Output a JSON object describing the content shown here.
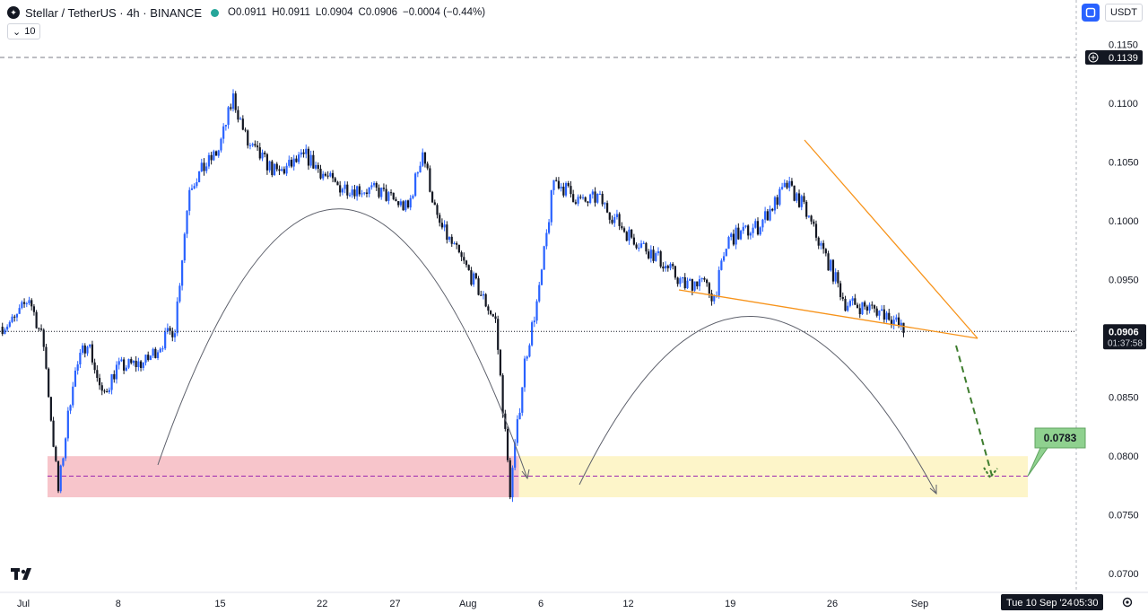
{
  "header": {
    "symbol": "Stellar / TetherUS · 4h · BINANCE",
    "ohlc": {
      "o_label": "O",
      "o": "0.0911",
      "h_label": "H",
      "h": "0.0911",
      "l_label": "L",
      "l": "0.0904",
      "c_label": "C",
      "c": "0.0906",
      "change": "−0.0004 (−0.44%)"
    },
    "indicator_value": "10"
  },
  "currency_selector": "USDT",
  "icons": [
    "stellar-logo",
    "settings-icon",
    "crosshair-plus-icon",
    "tradingview-logo",
    "gear-icon",
    "chevron-down-icon"
  ],
  "chart_data": {
    "type": "candlestick",
    "ylim": [
      0.0675,
      0.1155
    ],
    "y_ticks": [
      "0.1150",
      "0.1100",
      "0.1050",
      "0.1000",
      "0.0950",
      "0.0900",
      "0.0850",
      "0.0800",
      "0.0750",
      "0.0700"
    ],
    "x_ticks": [
      "Jul",
      "8",
      "15",
      "22",
      "27",
      "Aug",
      "6",
      "12",
      "19",
      "26",
      "Sep"
    ],
    "price_path": [
      {
        "t": "Jul 1",
        "p": 0.091
      },
      {
        "t": "Jul 2",
        "p": 0.0915
      },
      {
        "t": "Jul 3",
        "p": 0.0935
      },
      {
        "t": "Jul 4",
        "p": 0.0895
      },
      {
        "t": "Jul 5",
        "p": 0.077
      },
      {
        "t": "Jul 6",
        "p": 0.0865
      },
      {
        "t": "Jul 7",
        "p": 0.09
      },
      {
        "t": "Jul 8",
        "p": 0.085
      },
      {
        "t": "Jul 9",
        "p": 0.0875
      },
      {
        "t": "Jul 11",
        "p": 0.088
      },
      {
        "t": "Jul 13",
        "p": 0.091
      },
      {
        "t": "Jul 14",
        "p": 0.103
      },
      {
        "t": "Jul 16",
        "p": 0.106
      },
      {
        "t": "Jul 17",
        "p": 0.1105
      },
      {
        "t": "Jul 18",
        "p": 0.1065
      },
      {
        "t": "Jul 20",
        "p": 0.104
      },
      {
        "t": "Jul 22",
        "p": 0.1055
      },
      {
        "t": "Jul 24",
        "p": 0.103
      },
      {
        "t": "Jul 27",
        "p": 0.1025
      },
      {
        "t": "Jul 29",
        "p": 0.101
      },
      {
        "t": "Jul 30",
        "p": 0.106
      },
      {
        "t": "Jul 31",
        "p": 0.1
      },
      {
        "t": "Aug 2",
        "p": 0.096
      },
      {
        "t": "Aug 4",
        "p": 0.0915
      },
      {
        "t": "Aug 5",
        "p": 0.077
      },
      {
        "t": "Aug 6",
        "p": 0.088
      },
      {
        "t": "Aug 7",
        "p": 0.094
      },
      {
        "t": "Aug 8",
        "p": 0.1035
      },
      {
        "t": "Aug 10",
        "p": 0.1015
      },
      {
        "t": "Aug 11",
        "p": 0.102
      },
      {
        "t": "Aug 13",
        "p": 0.099
      },
      {
        "t": "Aug 15",
        "p": 0.097
      },
      {
        "t": "Aug 17",
        "p": 0.0945
      },
      {
        "t": "Aug 18",
        "p": 0.095
      },
      {
        "t": "Aug 19",
        "p": 0.0935
      },
      {
        "t": "Aug 20",
        "p": 0.0985
      },
      {
        "t": "Aug 22",
        "p": 0.0995
      },
      {
        "t": "Aug 24",
        "p": 0.103
      },
      {
        "t": "Aug 25",
        "p": 0.1015
      },
      {
        "t": "Aug 27",
        "p": 0.096
      },
      {
        "t": "Aug 28",
        "p": 0.093
      },
      {
        "t": "Aug 30",
        "p": 0.0925
      },
      {
        "t": "Aug 31",
        "p": 0.092
      },
      {
        "t": "Sep 1",
        "p": 0.0906
      }
    ],
    "last_price": "0.0906",
    "countdown": "01:37:58",
    "crosshair_price": "0.1139",
    "annotations": {
      "target_label": "0.0783",
      "support_zone": [
        0.0765,
        0.08
      ],
      "target_level": 0.0783
    },
    "time_label": "Tue 10 Sep '24",
    "time_label_clock": "05:30",
    "colors": {
      "up": "#2962ff",
      "down": "#131722",
      "trendline": "#f7931a",
      "red_zone": "#f7c5cb",
      "yellow_zone": "#fdf5c9",
      "target_badge": "#8fd18f",
      "projection": "#3e7d2e"
    }
  }
}
